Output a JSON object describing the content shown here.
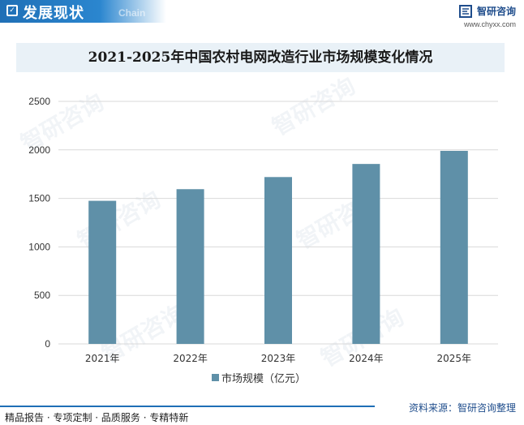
{
  "header": {
    "title": "发展现状",
    "title_en": "Chain",
    "brand_name": "智研咨询",
    "brand_url": "www.chyxx.com"
  },
  "watermark_text": "智研咨询",
  "chart_data": {
    "type": "bar",
    "title": "2021-2025年中国农村电网改造行业市场规模变化情况",
    "categories": [
      "2021年",
      "2022年",
      "2023年",
      "2024年",
      "2025年"
    ],
    "series": [
      {
        "name": "市场规模（亿元）",
        "values": [
          1475,
          1595,
          1720,
          1855,
          1990
        ]
      }
    ],
    "ylim": [
      0,
      2500
    ],
    "yticks": [
      0,
      500,
      1000,
      1500,
      2000,
      2500
    ],
    "xlabel": "",
    "ylabel": "",
    "grid": true,
    "legend_position": "bottom-center",
    "bar_color": "#5f90a8"
  },
  "footer": {
    "left": "精品报告 · 专项定制 · 品质服务 · 专精特新",
    "source": "资料来源：智研咨询整理"
  }
}
